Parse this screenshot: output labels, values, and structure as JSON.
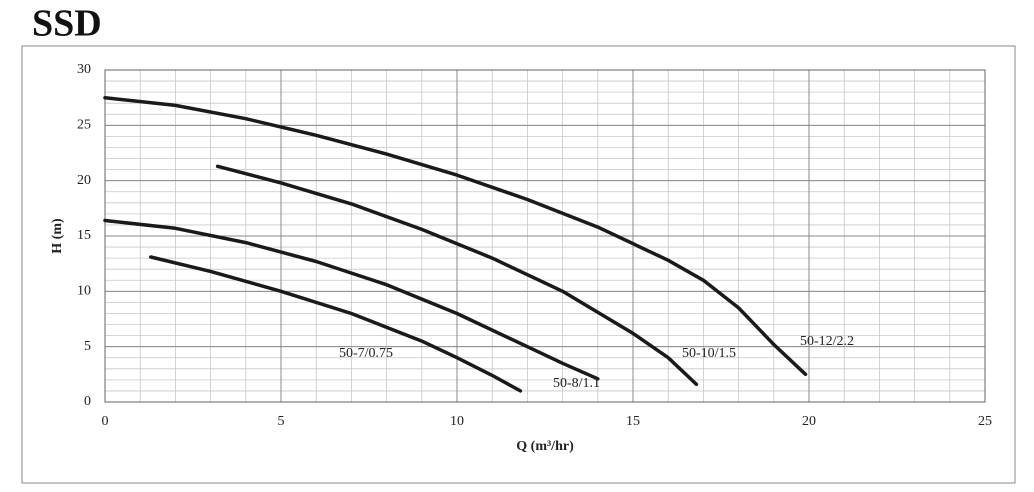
{
  "chart_data": {
    "type": "line",
    "title": "SSD",
    "x_label": "Q (m³/hr)",
    "y_label": "H (m)",
    "xlim": [
      0,
      25
    ],
    "ylim": [
      0,
      30
    ],
    "xticks": [
      0,
      5,
      10,
      15,
      20,
      25
    ],
    "yticks": [
      0,
      5,
      10,
      15,
      20,
      25,
      30
    ],
    "grid": true,
    "minor_grid": true,
    "series": [
      {
        "name": "50-12/2.2",
        "color": "#1a1a1a",
        "x": [
          0,
          2,
          4,
          6,
          8,
          10,
          12,
          14,
          16,
          17,
          18,
          19,
          19.9
        ],
        "values": [
          27.5,
          26.8,
          25.6,
          24.1,
          22.4,
          20.5,
          18.3,
          15.8,
          12.8,
          11.0,
          8.5,
          5.2,
          2.5
        ]
      },
      {
        "name": "50-10/1.5",
        "color": "#1a1a1a",
        "x": [
          3.2,
          5,
          7,
          9,
          11,
          13,
          15,
          16,
          16.8
        ],
        "values": [
          21.3,
          19.8,
          17.9,
          15.6,
          13.0,
          10.0,
          6.2,
          4.0,
          1.6
        ]
      },
      {
        "name": "50-8/1.1",
        "color": "#1a1a1a",
        "x": [
          0,
          2,
          4,
          6,
          8,
          10,
          12,
          13,
          14
        ],
        "values": [
          16.4,
          15.7,
          14.4,
          12.7,
          10.6,
          8.0,
          5.0,
          3.5,
          2.1
        ]
      },
      {
        "name": "50-7/0.75",
        "color": "#1a1a1a",
        "x": [
          1.3,
          3,
          5,
          7,
          9,
          10,
          11,
          11.8
        ],
        "values": [
          13.1,
          11.8,
          10.0,
          8.0,
          5.5,
          4.0,
          2.4,
          1.0
        ]
      }
    ]
  }
}
